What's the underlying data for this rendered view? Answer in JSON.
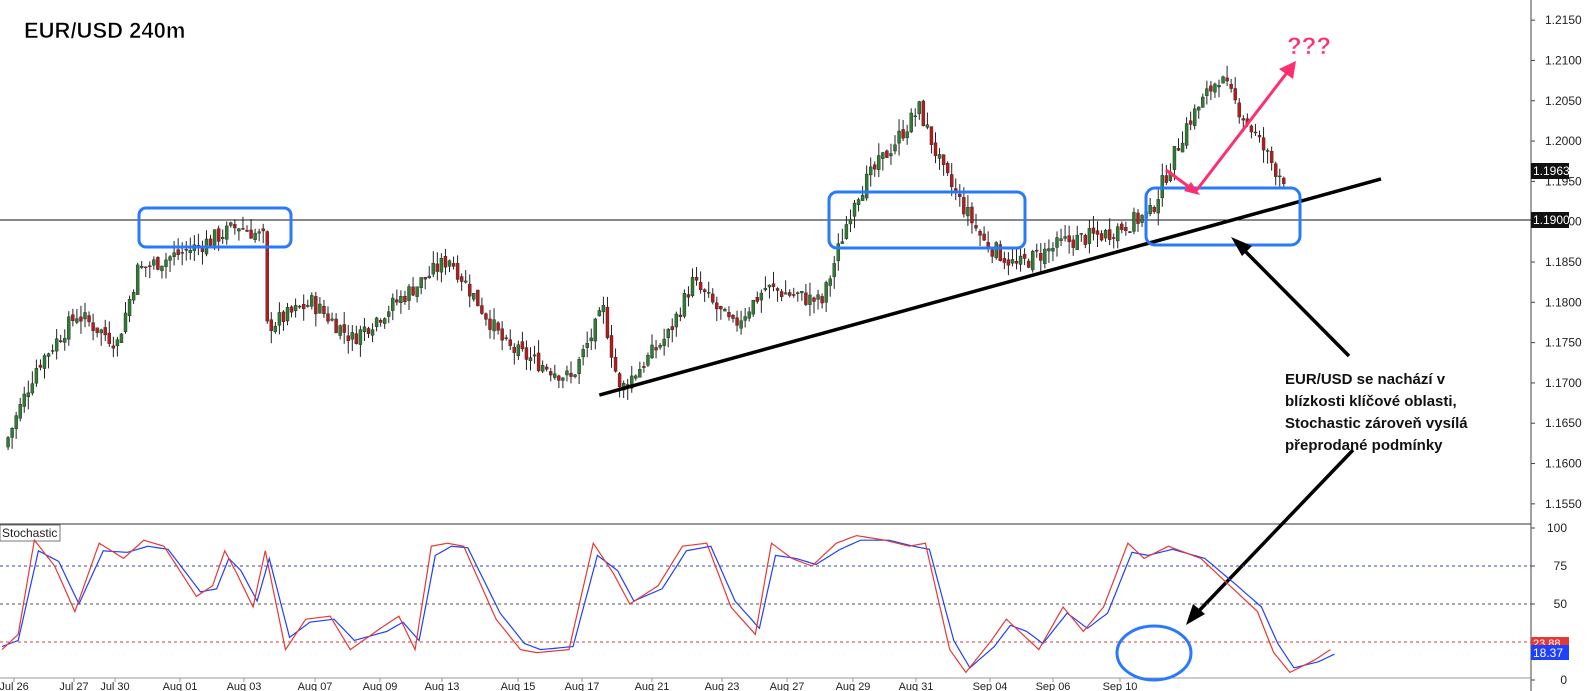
{
  "title": "EUR/USD 240m",
  "annotation_question": "???",
  "note_lines": [
    "EUR/USD se nachází v",
    "blízkosti klíčové oblasti,",
    "Stochastic zároveň vysílá",
    "přeprodané podmínky"
  ],
  "colors": {
    "bull": "#2e7d32",
    "bear": "#b71c1c",
    "box": "#2979ff",
    "pink": "#ff2e6e",
    "k_line": "#e53935",
    "d_line": "#1e40ff"
  },
  "chart_data": [
    {
      "type": "candlestick",
      "symbol": "EUR/USD",
      "timeframe": "240m",
      "ylim": [
        1.1525,
        1.2175
      ],
      "y_ticks": [
        "1.1550",
        "1.1600",
        "1.1650",
        "1.1700",
        "1.1750",
        "1.1800",
        "1.1850",
        "1.1900",
        "1.1950",
        "1.2000",
        "1.2050",
        "1.2100",
        "1.2150"
      ],
      "x_ticks": [
        "Jul 26",
        "Jul 27",
        "Jul 30",
        "Aug 01",
        "Aug 03",
        "Aug 07",
        "Aug 09",
        "Aug 13",
        "Aug 15",
        "Aug 17",
        "Aug 21",
        "Aug 23",
        "Aug 27",
        "Aug 29",
        "Aug 31",
        "Sep 04",
        "Sep 06",
        "Sep 10"
      ],
      "close_path_anchors": [
        [
          0,
          1.162
        ],
        [
          8,
          1.172
        ],
        [
          18,
          1.1785
        ],
        [
          28,
          1.175
        ],
        [
          33,
          1.184
        ],
        [
          48,
          1.187
        ],
        [
          58,
          1.1895
        ],
        [
          64,
          1.188
        ],
        [
          65,
          1.177
        ],
        [
          76,
          1.18
        ],
        [
          86,
          1.1755
        ],
        [
          110,
          1.1855
        ],
        [
          124,
          1.1745
        ],
        [
          140,
          1.1705
        ],
        [
          148,
          1.179
        ],
        [
          152,
          1.169
        ],
        [
          164,
          1.176
        ],
        [
          170,
          1.1825
        ],
        [
          180,
          1.177
        ],
        [
          188,
          1.1818
        ],
        [
          202,
          1.18
        ],
        [
          210,
          1.193
        ],
        [
          218,
          1.1985
        ],
        [
          226,
          1.204
        ],
        [
          232,
          1.196
        ],
        [
          242,
          1.1875
        ],
        [
          250,
          1.1845
        ],
        [
          262,
          1.1875
        ],
        [
          272,
          1.1885
        ],
        [
          283,
          1.191
        ],
        [
          292,
          1.202
        ],
        [
          300,
          1.208
        ],
        [
          308,
          1.2015
        ],
        [
          314,
          1.1965
        ],
        [
          316,
          1.1955
        ]
      ],
      "last_price": "1.1963",
      "support_level": "1.1900",
      "trendline": {
        "from": [
          147,
          1.1685
        ],
        "to": [
          340,
          1.1953
        ]
      }
    },
    {
      "type": "line",
      "name": "Stochastic",
      "ylim": [
        0,
        100
      ],
      "y_ticks": [
        "100",
        "75",
        "50",
        "25",
        "0"
      ],
      "levels": [
        80,
        50,
        20
      ],
      "k_anchors": [
        [
          0,
          20
        ],
        [
          4,
          30
        ],
        [
          8,
          92
        ],
        [
          13,
          75
        ],
        [
          18,
          45
        ],
        [
          24,
          90
        ],
        [
          30,
          80
        ],
        [
          35,
          92
        ],
        [
          40,
          88
        ],
        [
          48,
          55
        ],
        [
          52,
          62
        ],
        [
          55,
          85
        ],
        [
          58,
          70
        ],
        [
          62,
          48
        ],
        [
          65,
          85
        ],
        [
          70,
          20
        ],
        [
          75,
          40
        ],
        [
          81,
          42
        ],
        [
          86,
          20
        ],
        [
          94,
          35
        ],
        [
          98,
          42
        ],
        [
          102,
          20
        ],
        [
          106,
          88
        ],
        [
          110,
          90
        ],
        [
          114,
          88
        ],
        [
          122,
          40
        ],
        [
          128,
          20
        ],
        [
          132,
          18
        ],
        [
          140,
          20
        ],
        [
          146,
          90
        ],
        [
          151,
          70
        ],
        [
          155,
          50
        ],
        [
          162,
          62
        ],
        [
          168,
          88
        ],
        [
          174,
          90
        ],
        [
          180,
          48
        ],
        [
          186,
          30
        ],
        [
          190,
          90
        ],
        [
          195,
          80
        ],
        [
          200,
          75
        ],
        [
          206,
          90
        ],
        [
          211,
          95
        ],
        [
          218,
          92
        ],
        [
          224,
          88
        ],
        [
          228,
          90
        ],
        [
          234,
          20
        ],
        [
          238,
          5
        ],
        [
          244,
          25
        ],
        [
          248,
          40
        ],
        [
          252,
          30
        ],
        [
          256,
          20
        ],
        [
          262,
          48
        ],
        [
          267,
          32
        ],
        [
          272,
          48
        ],
        [
          278,
          90
        ],
        [
          282,
          80
        ],
        [
          288,
          88
        ],
        [
          296,
          80
        ],
        [
          304,
          60
        ],
        [
          310,
          45
        ],
        [
          314,
          18
        ],
        [
          318,
          5
        ],
        [
          324,
          13
        ],
        [
          328,
          20
        ]
      ],
      "d_anchors": [
        [
          0,
          22
        ],
        [
          4,
          26
        ],
        [
          9,
          85
        ],
        [
          14,
          78
        ],
        [
          19,
          50
        ],
        [
          25,
          85
        ],
        [
          31,
          84
        ],
        [
          36,
          88
        ],
        [
          41,
          86
        ],
        [
          49,
          58
        ],
        [
          53,
          60
        ],
        [
          56,
          80
        ],
        [
          59,
          72
        ],
        [
          63,
          52
        ],
        [
          66,
          80
        ],
        [
          71,
          28
        ],
        [
          76,
          38
        ],
        [
          82,
          40
        ],
        [
          87,
          26
        ],
        [
          95,
          32
        ],
        [
          99,
          38
        ],
        [
          103,
          26
        ],
        [
          107,
          82
        ],
        [
          111,
          88
        ],
        [
          115,
          87
        ],
        [
          123,
          44
        ],
        [
          129,
          24
        ],
        [
          133,
          20
        ],
        [
          141,
          22
        ],
        [
          147,
          82
        ],
        [
          152,
          72
        ],
        [
          156,
          52
        ],
        [
          163,
          60
        ],
        [
          169,
          85
        ],
        [
          175,
          88
        ],
        [
          181,
          52
        ],
        [
          187,
          34
        ],
        [
          191,
          82
        ],
        [
          196,
          80
        ],
        [
          201,
          76
        ],
        [
          207,
          86
        ],
        [
          212,
          92
        ],
        [
          219,
          92
        ],
        [
          225,
          88
        ],
        [
          229,
          86
        ],
        [
          235,
          26
        ],
        [
          239,
          8
        ],
        [
          245,
          22
        ],
        [
          249,
          36
        ],
        [
          253,
          32
        ],
        [
          257,
          24
        ],
        [
          263,
          44
        ],
        [
          268,
          34
        ],
        [
          273,
          44
        ],
        [
          279,
          84
        ],
        [
          283,
          82
        ],
        [
          289,
          86
        ],
        [
          297,
          80
        ],
        [
          305,
          62
        ],
        [
          311,
          48
        ],
        [
          315,
          24
        ],
        [
          319,
          8
        ],
        [
          325,
          12
        ],
        [
          329,
          17
        ]
      ],
      "k_last": "23.88",
      "d_last": "18.37"
    }
  ]
}
